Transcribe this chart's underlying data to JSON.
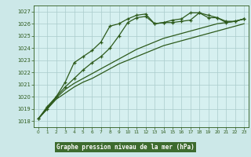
{
  "title": "Graphe pression niveau de la mer (hPa)",
  "bg_color": "#cce8e8",
  "plot_bg_color": "#d6f0f0",
  "grid_color": "#aacccc",
  "line_color": "#2d5a1b",
  "title_bg": "#4a7a3a",
  "title_fg": "#ffffff",
  "xlim": [
    -0.5,
    23.5
  ],
  "ylim": [
    1017.5,
    1027.5
  ],
  "x_ticks": [
    0,
    1,
    2,
    3,
    4,
    5,
    6,
    7,
    8,
    9,
    10,
    11,
    12,
    13,
    14,
    15,
    16,
    17,
    18,
    19,
    20,
    21,
    22,
    23
  ],
  "y_ticks": [
    1018,
    1019,
    1020,
    1021,
    1022,
    1023,
    1024,
    1025,
    1026,
    1027
  ],
  "series1_x": [
    0,
    1,
    2,
    3,
    4,
    5,
    6,
    7,
    8,
    9,
    10,
    11,
    12,
    13,
    14,
    15,
    16,
    17,
    18,
    19,
    20,
    21,
    22,
    23
  ],
  "series1_y": [
    1018.2,
    1019.2,
    1020.0,
    1020.8,
    1021.5,
    1022.2,
    1022.8,
    1023.3,
    1024.0,
    1025.0,
    1026.1,
    1026.5,
    1026.6,
    1026.0,
    1026.1,
    1026.1,
    1026.2,
    1026.3,
    1026.9,
    1026.5,
    1026.5,
    1026.1,
    1026.2,
    1026.4
  ],
  "series2_x": [
    0,
    1,
    2,
    3,
    4,
    5,
    6,
    7,
    8,
    9,
    10,
    11,
    12,
    13,
    14,
    15,
    16,
    17,
    18,
    19,
    20,
    21,
    22,
    23
  ],
  "series2_y": [
    1018.2,
    1019.0,
    1020.0,
    1021.2,
    1022.8,
    1023.3,
    1023.8,
    1024.5,
    1025.8,
    1026.0,
    1026.4,
    1026.7,
    1026.8,
    1026.0,
    1026.1,
    1026.3,
    1026.4,
    1026.9,
    1026.9,
    1026.7,
    1026.5,
    1026.2,
    1026.2,
    1026.4
  ],
  "series3_x": [
    0,
    1,
    2,
    3,
    4,
    5,
    6,
    7,
    8,
    9,
    10,
    11,
    12,
    13,
    14,
    15,
    16,
    17,
    18,
    19,
    20,
    21,
    22,
    23
  ],
  "series3_y": [
    1018.2,
    1019.1,
    1019.9,
    1020.6,
    1021.1,
    1021.5,
    1021.9,
    1022.3,
    1022.7,
    1023.1,
    1023.5,
    1023.9,
    1024.2,
    1024.5,
    1024.8,
    1025.0,
    1025.2,
    1025.4,
    1025.6,
    1025.8,
    1026.0,
    1026.1,
    1026.2,
    1026.4
  ],
  "series4_x": [
    0,
    1,
    2,
    3,
    4,
    5,
    6,
    7,
    8,
    9,
    10,
    11,
    12,
    13,
    14,
    15,
    16,
    17,
    18,
    19,
    20,
    21,
    22,
    23
  ],
  "series4_y": [
    1018.2,
    1019.0,
    1019.8,
    1020.3,
    1020.8,
    1021.2,
    1021.5,
    1021.9,
    1022.3,
    1022.7,
    1023.0,
    1023.3,
    1023.6,
    1023.9,
    1024.2,
    1024.4,
    1024.6,
    1024.8,
    1025.0,
    1025.2,
    1025.4,
    1025.6,
    1025.8,
    1026.0
  ]
}
